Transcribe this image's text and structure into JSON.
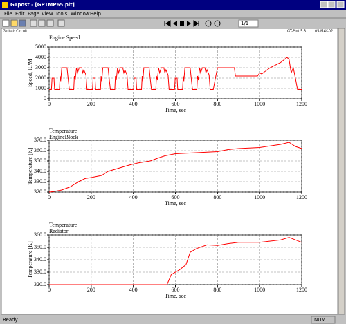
{
  "window": {
    "title": "GTpost - [GPTMP65.plt]",
    "menu": [
      "File",
      "Edit",
      "Page",
      "View",
      "Tools",
      "Window",
      "Help"
    ],
    "page": "1/1",
    "header_left": "Global: Circuit",
    "header_right": "GT-Plot 5.3",
    "header_date": "05-MAY-02",
    "status_left": "Ready",
    "status_right": "NUM"
  },
  "chart_data": [
    {
      "type": "line",
      "title": "Engine Speed",
      "ylabel": "Speed, RPM",
      "xlabel": "Time, sec",
      "color": "#ff0000",
      "grid": true,
      "xlim": [
        0,
        1200
      ],
      "xticks": [
        0,
        200,
        400,
        600,
        800,
        1000,
        1200
      ],
      "ylim": [
        0,
        5000
      ],
      "yticks": [
        0,
        1000,
        2000,
        3000,
        4000,
        5000
      ],
      "x": [
        0,
        11,
        14,
        23,
        26,
        49,
        52,
        55,
        60,
        85,
        90,
        96,
        117,
        120,
        124,
        130,
        135,
        143,
        155,
        160,
        165,
        175,
        180,
        195,
        206,
        209,
        218,
        221,
        244,
        247,
        250,
        255,
        280,
        285,
        291,
        312,
        315,
        319,
        325,
        330,
        338,
        350,
        355,
        360,
        370,
        375,
        390,
        401,
        404,
        413,
        416,
        439,
        442,
        445,
        450,
        475,
        480,
        486,
        507,
        510,
        514,
        520,
        525,
        533,
        545,
        550,
        555,
        565,
        570,
        585,
        596,
        599,
        608,
        611,
        634,
        637,
        640,
        645,
        670,
        675,
        681,
        702,
        705,
        709,
        715,
        720,
        728,
        740,
        745,
        750,
        760,
        765,
        780,
        790,
        800,
        880,
        885,
        990,
        1000,
        1010,
        1050,
        1100,
        1130,
        1140,
        1150,
        1160,
        1170,
        1180,
        1200
      ],
      "values": [
        900,
        900,
        2000,
        2000,
        900,
        900,
        2200,
        1700,
        3000,
        3000,
        2000,
        900,
        900,
        2200,
        1800,
        3000,
        2500,
        3000,
        3000,
        2500,
        2800,
        2300,
        900,
        900,
        900,
        2000,
        2000,
        900,
        900,
        2200,
        1700,
        3000,
        3000,
        2000,
        900,
        900,
        2200,
        1800,
        3000,
        2500,
        3000,
        3000,
        2500,
        2800,
        2300,
        900,
        900,
        900,
        2000,
        2000,
        900,
        900,
        2200,
        1700,
        3000,
        3000,
        2000,
        900,
        900,
        2200,
        1800,
        3000,
        2500,
        3000,
        3000,
        2500,
        2800,
        2300,
        900,
        900,
        900,
        2000,
        2000,
        900,
        900,
        2200,
        1700,
        3000,
        3000,
        2000,
        900,
        900,
        2200,
        1800,
        3000,
        2500,
        3000,
        3000,
        2500,
        2800,
        2300,
        900,
        900,
        2000,
        3000,
        3000,
        2200,
        2200,
        2500,
        2400,
        3000,
        3500,
        4000,
        3800,
        2500,
        3000,
        2000,
        900,
        900
      ]
    },
    {
      "type": "line",
      "title": "Temperature",
      "subtitle": "EngineBlock",
      "ylabel": "Temperature [K]",
      "xlabel": "Time, sec",
      "color": "#ff0000",
      "grid": true,
      "xlim": [
        0,
        1200
      ],
      "xticks": [
        0,
        200,
        400,
        600,
        800,
        1000,
        1200
      ],
      "ylim": [
        320,
        370
      ],
      "yticks": [
        {
          "value": 320,
          "label": "320.0"
        },
        {
          "value": 330,
          "label": "330.0"
        },
        {
          "value": 340,
          "label": "340.0"
        },
        {
          "value": 350,
          "label": "350.0"
        },
        {
          "value": 360,
          "label": "360.0"
        },
        {
          "value": 370,
          "label": "370.0"
        }
      ],
      "x": [
        0,
        20,
        60,
        100,
        140,
        170,
        200,
        250,
        280,
        330,
        380,
        420,
        480,
        520,
        550,
        600,
        700,
        800,
        850,
        900,
        1000,
        1100,
        1140,
        1170,
        1200
      ],
      "values": [
        320,
        320.5,
        322,
        325,
        330,
        333,
        334,
        336,
        340,
        343,
        346,
        348,
        350,
        353,
        355,
        357,
        358,
        359,
        361,
        362,
        363,
        366,
        368,
        364,
        362
      ]
    },
    {
      "type": "line",
      "title": "Temperature",
      "subtitle": "Radiator",
      "ylabel": "Temperature [K]",
      "xlabel": "Time, sec",
      "color": "#ff0000",
      "grid": true,
      "xlim": [
        0,
        1200
      ],
      "xticks": [
        0,
        200,
        400,
        600,
        800,
        1000,
        1200
      ],
      "ylim": [
        320,
        360
      ],
      "yticks": [
        {
          "value": 320,
          "label": "320.0"
        },
        {
          "value": 330,
          "label": "330.0"
        },
        {
          "value": 340,
          "label": "340.0"
        },
        {
          "value": 350,
          "label": "350.0"
        },
        {
          "value": 360,
          "label": "360.0"
        }
      ],
      "x": [
        0,
        560,
        580,
        620,
        650,
        670,
        700,
        750,
        800,
        850,
        900,
        1000,
        1100,
        1140,
        1170,
        1200
      ],
      "values": [
        320,
        320,
        328,
        332,
        336,
        346,
        349,
        352,
        351.5,
        353,
        354,
        354,
        356,
        358,
        356,
        354
      ]
    }
  ]
}
